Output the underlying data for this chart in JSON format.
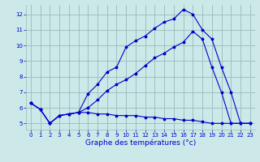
{
  "xlabel": "Graphe des températures (°c)",
  "bg_color": "#cce8e8",
  "grid_color": "#99bbbb",
  "line_color": "#0000cc",
  "xlim": [
    -0.5,
    23.5
  ],
  "ylim": [
    4.6,
    12.6
  ],
  "yticks": [
    5,
    6,
    7,
    8,
    9,
    10,
    11,
    12
  ],
  "xticks": [
    0,
    1,
    2,
    3,
    4,
    5,
    6,
    7,
    8,
    9,
    10,
    11,
    12,
    13,
    14,
    15,
    16,
    17,
    18,
    19,
    20,
    21,
    22,
    23
  ],
  "line1_x": [
    0,
    1,
    2,
    3,
    4,
    5,
    6,
    7,
    8,
    9,
    10,
    11,
    12,
    13,
    14,
    15,
    16,
    17,
    18,
    19,
    20,
    21,
    22,
    23
  ],
  "line1_y": [
    6.3,
    5.9,
    5.0,
    5.5,
    5.6,
    5.7,
    6.9,
    7.5,
    8.3,
    8.6,
    9.9,
    10.3,
    10.6,
    11.1,
    11.5,
    11.7,
    12.3,
    12.0,
    11.0,
    10.4,
    8.6,
    7.0,
    5.0,
    5.0
  ],
  "line2_x": [
    0,
    1,
    2,
    3,
    4,
    5,
    6,
    7,
    8,
    9,
    10,
    11,
    12,
    13,
    14,
    15,
    16,
    17,
    18,
    19,
    20,
    21,
    22,
    23
  ],
  "line2_y": [
    6.3,
    5.9,
    5.0,
    5.5,
    5.6,
    5.7,
    6.0,
    6.5,
    7.1,
    7.5,
    7.8,
    8.2,
    8.7,
    9.2,
    9.5,
    9.9,
    10.2,
    10.9,
    10.4,
    8.6,
    7.0,
    5.0,
    5.0,
    5.0
  ],
  "line3_x": [
    0,
    1,
    2,
    3,
    4,
    5,
    6,
    7,
    8,
    9,
    10,
    11,
    12,
    13,
    14,
    15,
    16,
    17,
    18,
    19,
    20,
    21,
    22,
    23
  ],
  "line3_y": [
    6.3,
    5.9,
    5.0,
    5.5,
    5.6,
    5.7,
    5.7,
    5.6,
    5.6,
    5.5,
    5.5,
    5.5,
    5.4,
    5.4,
    5.3,
    5.3,
    5.2,
    5.2,
    5.1,
    5.0,
    5.0,
    5.0,
    5.0,
    5.0
  ]
}
